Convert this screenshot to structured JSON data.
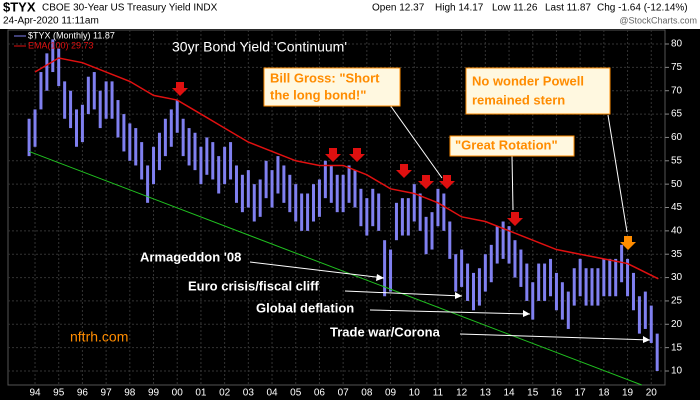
{
  "header": {
    "symbol": "$TYX",
    "name": "CBOE 30-Year US Treasury Yield INDX",
    "date": "24-Apr-2020 11:11am",
    "open": "Open 12.37",
    "high": "High 14.17",
    "low": "Low 11.26",
    "last": "Last 11.87",
    "chg": "Chg -1.64 (-12.14%)",
    "source": "@StockCharts.com"
  },
  "chart_data": {
    "type": "ohlc",
    "title": "30yr Bond Yield 'Continuum'",
    "legend": [
      "$TYX (Monthly) 11.87",
      "EMA(100) 29.73"
    ],
    "watermark": "nftrh.com",
    "color": "#8080f0",
    "x": [
      1993.75,
      1994,
      1994.25,
      1994.5,
      1994.75,
      1995,
      1995.25,
      1995.5,
      1995.75,
      1996,
      1996.25,
      1996.5,
      1996.75,
      1997,
      1997.25,
      1997.5,
      1997.75,
      1998,
      1998.25,
      1998.5,
      1998.75,
      1999,
      1999.25,
      1999.5,
      1999.75,
      2000,
      2000.25,
      2000.5,
      2000.75,
      2001,
      2001.25,
      2001.5,
      2001.75,
      2002,
      2002.25,
      2002.5,
      2002.75,
      2003,
      2003.25,
      2003.5,
      2003.75,
      2004,
      2004.25,
      2004.5,
      2004.75,
      2005,
      2005.25,
      2005.5,
      2005.75,
      2006,
      2006.25,
      2006.5,
      2006.75,
      2007,
      2007.25,
      2007.5,
      2007.75,
      2008,
      2008.25,
      2008.5,
      2008.75,
      2009,
      2009.25,
      2009.5,
      2009.75,
      2010,
      2010.25,
      2010.5,
      2010.75,
      2011,
      2011.25,
      2011.5,
      2011.75,
      2012,
      2012.25,
      2012.5,
      2012.75,
      2013,
      2013.25,
      2013.5,
      2013.75,
      2014,
      2014.25,
      2014.5,
      2014.75,
      2015,
      2015.25,
      2015.5,
      2015.75,
      2016,
      2016.25,
      2016.5,
      2016.75,
      2017,
      2017.25,
      2017.5,
      2017.75,
      2018,
      2018.25,
      2018.5,
      2018.75,
      2019,
      2019.25,
      2019.5,
      2019.75,
      2020,
      2020.25
    ],
    "high": [
      64,
      66,
      74,
      78,
      81,
      79,
      72,
      70,
      66,
      67,
      73,
      74,
      70,
      72,
      72,
      68,
      65,
      63,
      62,
      59,
      54,
      58,
      61,
      64,
      66,
      68,
      64,
      62,
      61,
      58,
      60,
      59,
      56,
      58,
      59,
      54,
      52,
      53,
      50,
      51,
      55,
      53,
      56,
      54,
      52,
      50,
      48,
      48,
      50,
      51,
      55,
      54,
      52,
      52,
      54,
      53,
      49,
      47,
      49,
      48,
      38,
      36,
      46,
      47,
      47,
      50,
      48,
      43,
      44,
      49,
      48,
      42,
      35,
      36,
      33,
      31,
      32,
      35,
      37,
      41,
      42,
      41,
      38,
      36,
      33,
      29,
      33,
      33,
      34,
      31,
      29,
      27,
      32,
      34,
      32,
      32,
      32,
      34,
      34,
      34,
      37,
      34,
      31,
      26,
      27,
      24,
      18
    ],
    "low": [
      56,
      58,
      66,
      70,
      74,
      71,
      64,
      62,
      58,
      59,
      65,
      66,
      62,
      64,
      64,
      60,
      57,
      55,
      54,
      51,
      46,
      50,
      53,
      56,
      58,
      61,
      56,
      54,
      53,
      50,
      52,
      51,
      48,
      50,
      51,
      46,
      44,
      45,
      42,
      43,
      47,
      45,
      48,
      46,
      44,
      42,
      40,
      40,
      42,
      43,
      47,
      46,
      44,
      44,
      46,
      45,
      41,
      39,
      41,
      40,
      26,
      27,
      38,
      39,
      39,
      42,
      40,
      35,
      36,
      41,
      40,
      34,
      27,
      28,
      25,
      23,
      24,
      27,
      29,
      33,
      34,
      33,
      30,
      28,
      25,
      21,
      25,
      25,
      26,
      23,
      21,
      19,
      24,
      26,
      24,
      24,
      24,
      26,
      26,
      26,
      29,
      26,
      23,
      18,
      19,
      16,
      10
    ],
    "ema": {
      "color": "#e01010",
      "x": [
        1994,
        1995,
        1996,
        1997,
        1998,
        1999,
        2000,
        2001,
        2002,
        2003,
        2004,
        2005,
        2006,
        2007,
        2008,
        2009,
        2010,
        2011,
        2012,
        2013,
        2014,
        2015,
        2016,
        2017,
        2018,
        2019,
        2020.3
      ],
      "values": [
        74,
        77,
        76,
        74,
        72,
        69,
        68,
        65,
        62,
        59,
        57,
        55,
        54,
        54,
        52,
        49,
        48,
        46,
        43,
        42,
        40,
        38,
        36,
        35,
        34,
        33,
        29.73
      ]
    },
    "trendline": {
      "color": "#20c020",
      "x": [
        1993.75,
        2019.6
      ],
      "values": [
        57,
        7
      ]
    },
    "notes": [
      "Armageddon '08",
      "Euro crisis/fiscal cliff",
      "Global deflation",
      "Trade war/Corona"
    ],
    "boxes": [
      {
        "lines": [
          "Bill Gross: \"Short",
          "the long bond!\""
        ]
      },
      {
        "lines": [
          "No wonder Powell",
          "remained stern"
        ]
      },
      {
        "lines": [
          "\"Great Rotation\""
        ]
      }
    ],
    "xlim": [
      1992.86,
      2020.58
    ],
    "ylim": [
      7,
      83
    ],
    "yticks": [
      10,
      15,
      20,
      25,
      30,
      35,
      40,
      45,
      50,
      55,
      60,
      65,
      70,
      75,
      80
    ],
    "xticks": [
      {
        "value": 1994,
        "label": "94"
      },
      {
        "value": 1995,
        "label": "95"
      },
      {
        "value": 1996,
        "label": "96"
      },
      {
        "value": 1997,
        "label": "97"
      },
      {
        "value": 1998,
        "label": "98"
      },
      {
        "value": 1999,
        "label": "99"
      },
      {
        "value": 2000,
        "label": "00"
      },
      {
        "value": 2001,
        "label": "01"
      },
      {
        "value": 2002,
        "label": "02"
      },
      {
        "value": 2003,
        "label": "03"
      },
      {
        "value": 2004,
        "label": "04"
      },
      {
        "value": 2005,
        "label": "05"
      },
      {
        "value": 2006,
        "label": "06"
      },
      {
        "value": 2007,
        "label": "07"
      },
      {
        "value": 2008,
        "label": "08"
      },
      {
        "value": 2009,
        "label": "09"
      },
      {
        "value": 2010,
        "label": "10"
      },
      {
        "value": 2011,
        "label": "11"
      },
      {
        "value": 2012,
        "label": "12"
      },
      {
        "value": 2013,
        "label": "13"
      },
      {
        "value": 2014,
        "label": "14"
      },
      {
        "value": 2015,
        "label": "15"
      },
      {
        "value": 2016,
        "label": "16"
      },
      {
        "value": 2017,
        "label": "17"
      },
      {
        "value": 2018,
        "label": "18"
      },
      {
        "value": 2019,
        "label": "19"
      },
      {
        "value": 2020,
        "label": "20"
      }
    ],
    "grid": true
  }
}
